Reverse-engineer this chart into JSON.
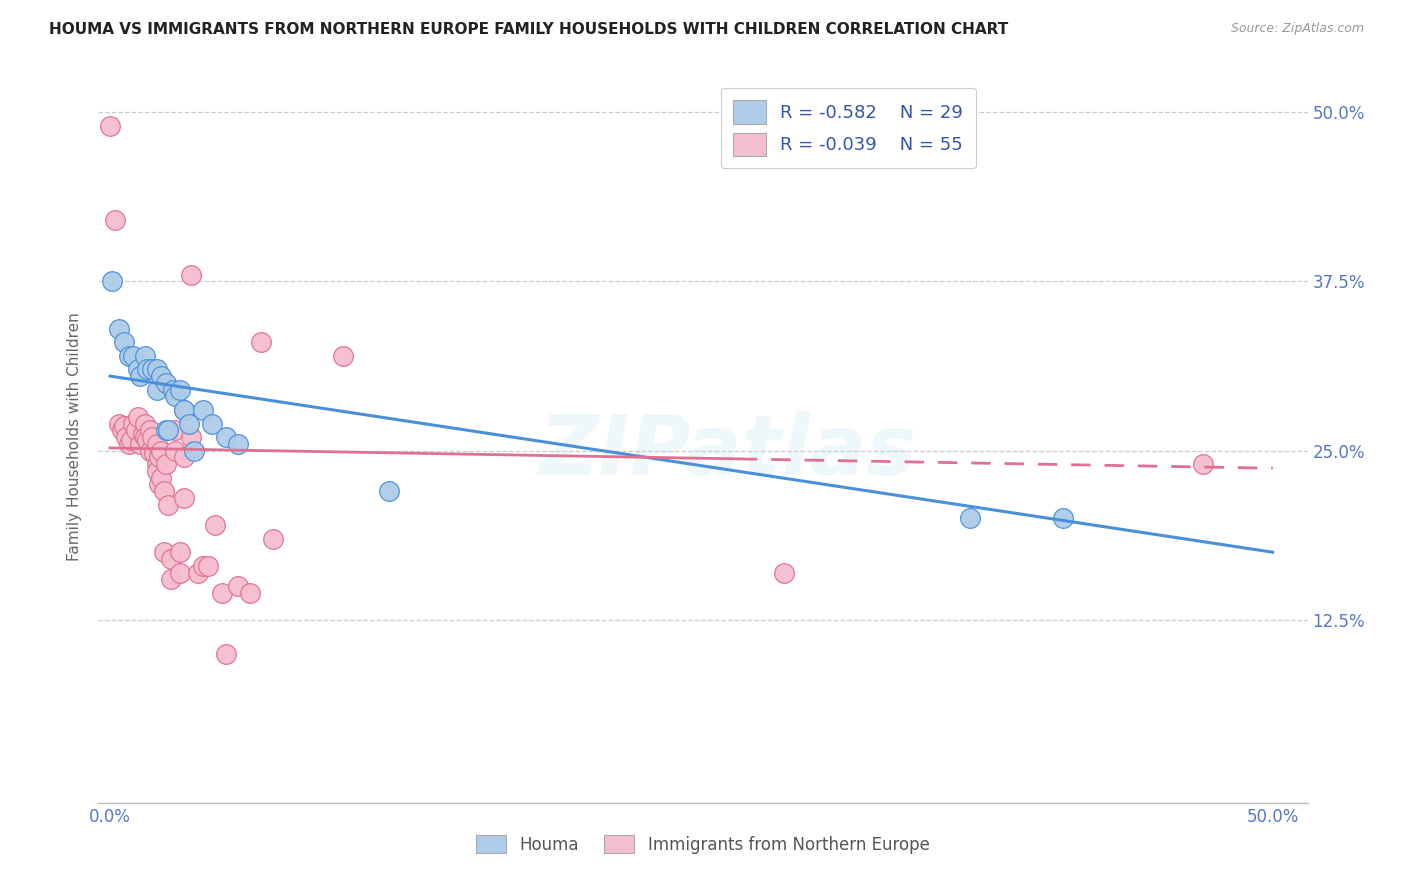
{
  "title": "HOUMA VS IMMIGRANTS FROM NORTHERN EUROPE FAMILY HOUSEHOLDS WITH CHILDREN CORRELATION CHART",
  "source": "Source: ZipAtlas.com",
  "ylabel": "Family Households with Children",
  "houma_R": "-0.582",
  "houma_N": "29",
  "immigrants_R": "-0.039",
  "immigrants_N": "55",
  "houma_color": "#aecce8",
  "immigrants_color": "#f5bece",
  "houma_line_color": "#4a90d9",
  "immigrants_line_color": "#e07090",
  "legend_text_color": "#3355aa",
  "axis_label_color": "#5577cc",
  "watermark": "ZIPatlas",
  "houma_points": [
    [
      0.001,
      0.375
    ],
    [
      0.004,
      0.34
    ],
    [
      0.006,
      0.33
    ],
    [
      0.008,
      0.32
    ],
    [
      0.01,
      0.32
    ],
    [
      0.012,
      0.31
    ],
    [
      0.013,
      0.305
    ],
    [
      0.015,
      0.32
    ],
    [
      0.016,
      0.31
    ],
    [
      0.018,
      0.31
    ],
    [
      0.02,
      0.31
    ],
    [
      0.02,
      0.295
    ],
    [
      0.022,
      0.305
    ],
    [
      0.024,
      0.3
    ],
    [
      0.024,
      0.265
    ],
    [
      0.025,
      0.265
    ],
    [
      0.027,
      0.295
    ],
    [
      0.028,
      0.29
    ],
    [
      0.03,
      0.295
    ],
    [
      0.032,
      0.28
    ],
    [
      0.034,
      0.27
    ],
    [
      0.036,
      0.25
    ],
    [
      0.04,
      0.28
    ],
    [
      0.044,
      0.27
    ],
    [
      0.05,
      0.26
    ],
    [
      0.055,
      0.255
    ],
    [
      0.12,
      0.22
    ],
    [
      0.37,
      0.2
    ],
    [
      0.41,
      0.2
    ]
  ],
  "immigrants_points": [
    [
      0.0,
      0.49
    ],
    [
      0.002,
      0.42
    ],
    [
      0.004,
      0.27
    ],
    [
      0.005,
      0.265
    ],
    [
      0.006,
      0.268
    ],
    [
      0.007,
      0.26
    ],
    [
      0.008,
      0.255
    ],
    [
      0.009,
      0.258
    ],
    [
      0.01,
      0.27
    ],
    [
      0.011,
      0.265
    ],
    [
      0.012,
      0.275
    ],
    [
      0.013,
      0.255
    ],
    [
      0.014,
      0.262
    ],
    [
      0.015,
      0.27
    ],
    [
      0.015,
      0.26
    ],
    [
      0.016,
      0.258
    ],
    [
      0.017,
      0.265
    ],
    [
      0.017,
      0.25
    ],
    [
      0.018,
      0.26
    ],
    [
      0.019,
      0.248
    ],
    [
      0.02,
      0.255
    ],
    [
      0.02,
      0.24
    ],
    [
      0.02,
      0.235
    ],
    [
      0.021,
      0.245
    ],
    [
      0.021,
      0.225
    ],
    [
      0.022,
      0.25
    ],
    [
      0.022,
      0.23
    ],
    [
      0.023,
      0.22
    ],
    [
      0.023,
      0.175
    ],
    [
      0.024,
      0.24
    ],
    [
      0.025,
      0.21
    ],
    [
      0.026,
      0.17
    ],
    [
      0.026,
      0.155
    ],
    [
      0.028,
      0.265
    ],
    [
      0.028,
      0.25
    ],
    [
      0.03,
      0.175
    ],
    [
      0.03,
      0.16
    ],
    [
      0.032,
      0.28
    ],
    [
      0.032,
      0.245
    ],
    [
      0.032,
      0.215
    ],
    [
      0.035,
      0.38
    ],
    [
      0.035,
      0.26
    ],
    [
      0.038,
      0.16
    ],
    [
      0.04,
      0.165
    ],
    [
      0.042,
      0.165
    ],
    [
      0.045,
      0.195
    ],
    [
      0.048,
      0.145
    ],
    [
      0.05,
      0.1
    ],
    [
      0.055,
      0.15
    ],
    [
      0.06,
      0.145
    ],
    [
      0.065,
      0.33
    ],
    [
      0.07,
      0.185
    ],
    [
      0.1,
      0.32
    ],
    [
      0.29,
      0.16
    ],
    [
      0.47,
      0.24
    ]
  ],
  "houma_trendline_x": [
    0.0,
    0.5
  ],
  "houma_trendline_y": [
    0.305,
    0.175
  ],
  "immigrants_trendline_x": [
    0.0,
    0.5
  ],
  "immigrants_trendline_y": [
    0.252,
    0.237
  ],
  "immigrants_trendline_dash_start": 0.27,
  "xlim": [
    -0.005,
    0.515
  ],
  "ylim": [
    -0.01,
    0.53
  ],
  "ytick_positions": [
    0.125,
    0.25,
    0.375,
    0.5
  ],
  "ytick_labels": [
    "12.5%",
    "25.0%",
    "37.5%",
    "50.0%"
  ],
  "xtick_positions": [
    0.0,
    0.1,
    0.2,
    0.3,
    0.4,
    0.5
  ],
  "xtick_labels": [
    "0.0%",
    "",
    "",
    "",
    "",
    "50.0%"
  ]
}
